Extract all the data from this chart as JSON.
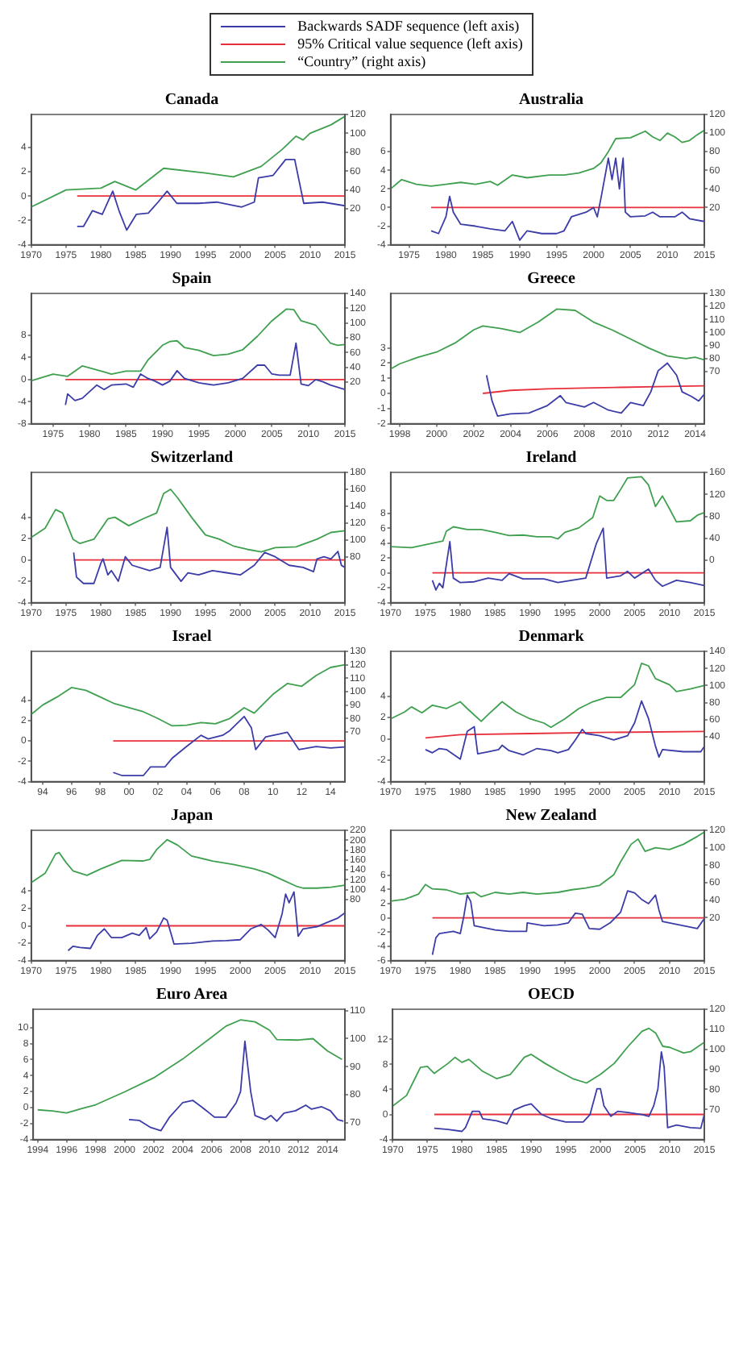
{
  "chart_data": [
    {
      "type": "line",
      "title": "Canada",
      "legend": "top",
      "xlim": [
        1970,
        2015
      ],
      "xticks": [
        1970,
        1975,
        1980,
        1985,
        1990,
        1995,
        2000,
        2005,
        2010,
        2015
      ],
      "ylim": [
        -4,
        6.7
      ],
      "yticks": [
        -4,
        -2,
        0,
        2,
        4
      ],
      "y2lim": [
        -18,
        120
      ],
      "y2ticks": [
        20,
        40,
        60,
        80,
        100,
        120
      ],
      "series": [
        {
          "name": "Backwards SADF sequence (left axis)",
          "color": "#3c3ca8",
          "x": [
            1976.6,
            1977.5,
            1978.8,
            1980.2,
            1981.7,
            1982.6,
            1983.7,
            1985.1,
            1986.8,
            1988.2,
            1989.5,
            1990.9,
            1994,
            1996.6,
            2000.2,
            2002,
            2002.6,
            2004.7,
            2006.5,
            2007.8,
            2009.1,
            2011.8,
            2015
          ],
          "values": [
            -2.5,
            -2.5,
            -1.2,
            -1.5,
            0.4,
            -1.2,
            -2.8,
            -1.5,
            -1.4,
            -0.5,
            0.4,
            -0.6,
            -0.6,
            -0.5,
            -0.9,
            -0.5,
            1.5,
            1.7,
            3,
            3,
            -0.6,
            -0.5,
            -0.8
          ]
        },
        {
          "name": "95% Critical value sequence (left axis)",
          "color": "#e8303c",
          "x": [
            1976.6,
            2015
          ],
          "values": [
            0,
            0
          ]
        },
        {
          "name": "“Country” (right axis)",
          "color": "#3fa04f",
          "axis": "y2",
          "x": [
            1970,
            1975,
            1980,
            1982,
            1985,
            1989,
            1995,
            1999,
            2003,
            2006,
            2008,
            2009,
            2010,
            2013,
            2015
          ],
          "values": [
            22,
            40,
            42,
            49,
            40,
            63,
            58,
            54,
            65,
            83,
            97,
            93,
            100,
            109,
            118
          ]
        }
      ]
    },
    {
      "type": "line",
      "title": "Australia",
      "xlim": [
        1972.5,
        2015
      ],
      "xticks": [
        1975,
        1980,
        1985,
        1990,
        1995,
        2000,
        2005,
        2010,
        2015
      ],
      "ylim": [
        -4,
        10
      ],
      "yticks": [
        -4,
        -2,
        0,
        2,
        4,
        6
      ],
      "y2lim": [
        -20,
        120
      ],
      "y2ticks": [
        20,
        40,
        60,
        80,
        100,
        120
      ],
      "series": [
        {
          "color": "#3c3ca8",
          "x": [
            1978,
            1979,
            1980,
            1980.5,
            1981,
            1982,
            1984,
            1986,
            1988,
            1989,
            1990,
            1991,
            1993,
            1995,
            1996,
            1997,
            1999,
            2000,
            2000.5,
            2001,
            2002,
            2002.5,
            2003,
            2003.5,
            2004,
            2004.3,
            2005,
            2007,
            2008,
            2009,
            2011,
            2012,
            2013,
            2015
          ],
          "values": [
            -2.5,
            -2.8,
            -1,
            1.2,
            -0.5,
            -1.8,
            -2,
            -2.3,
            -2.5,
            -1.5,
            -3.5,
            -2.5,
            -2.8,
            -2.8,
            -2.5,
            -1,
            -0.5,
            0,
            -1,
            1,
            5.3,
            3,
            5.3,
            2,
            5.3,
            -0.5,
            -1,
            -0.9,
            -0.5,
            -1,
            -1,
            -0.5,
            -1.2,
            -1.5
          ]
        },
        {
          "color": "#e8303c",
          "x": [
            1978,
            2015
          ],
          "values": [
            0,
            0
          ]
        },
        {
          "color": "#3fa04f",
          "axis": "y2",
          "x": [
            1972.5,
            1974,
            1976,
            1978,
            1980,
            1982,
            1984,
            1986,
            1987,
            1989,
            1991,
            1994,
            1996,
            1998,
            2000,
            2001,
            2002,
            2003,
            2005,
            2007,
            2008,
            2009,
            2010,
            2011,
            2012,
            2013,
            2014,
            2015
          ],
          "values": [
            40,
            50,
            45,
            43,
            45,
            47,
            45,
            48,
            44,
            55,
            52,
            55,
            55,
            57,
            62,
            68,
            80,
            94,
            95,
            102,
            96,
            92,
            100,
            96,
            90,
            92,
            98,
            103
          ]
        }
      ]
    },
    {
      "type": "line",
      "title": "Spain",
      "xlim": [
        1972,
        2015
      ],
      "xticks": [
        1975,
        1980,
        1985,
        1990,
        1995,
        2000,
        2005,
        2010,
        2015
      ],
      "ylim": [
        -8,
        15.6
      ],
      "yticks": [
        -8,
        -4,
        0,
        4,
        8
      ],
      "y2lim": [
        -36,
        140
      ],
      "y2ticks": [
        20,
        40,
        60,
        80,
        100,
        120,
        140
      ],
      "series": [
        {
          "color": "#3c3ca8",
          "x": [
            1976.7,
            1977,
            1978,
            1979,
            1980,
            1981,
            1982,
            1983,
            1985,
            1986,
            1987,
            1988,
            1989,
            1990,
            1991,
            1992,
            1993,
            1995,
            1997,
            1999,
            2001,
            2003,
            2004,
            2005,
            2006,
            2007.5,
            2008.3,
            2009,
            2010,
            2011,
            2012,
            2013,
            2015
          ],
          "values": [
            -4.6,
            -2.6,
            -3.8,
            -3.4,
            -2.2,
            -1,
            -1.8,
            -1,
            -0.8,
            -1.4,
            1,
            0.2,
            -0.3,
            -1,
            -0.3,
            1.6,
            0.2,
            -0.6,
            -1,
            -0.6,
            0.2,
            2.6,
            2.6,
            1,
            0.8,
            0.8,
            6.6,
            -0.8,
            -1.1,
            0,
            -0.4,
            -1,
            -1.8
          ]
        },
        {
          "color": "#e8303c",
          "x": [
            1976.7,
            2015
          ],
          "values": [
            0,
            0
          ]
        },
        {
          "color": "#3fa04f",
          "axis": "y2",
          "x": [
            1972,
            1975,
            1977,
            1979,
            1982,
            1983,
            1985,
            1987,
            1988,
            1990,
            1991,
            1992,
            1993,
            1995,
            1997,
            1999,
            2001,
            2003,
            2005,
            2007,
            2008,
            2009,
            2010,
            2011,
            2013,
            2014,
            2015
          ],
          "values": [
            22,
            31,
            28,
            42,
            34,
            31,
            35,
            35,
            50,
            70,
            75,
            76,
            67,
            63,
            56,
            58,
            64,
            82,
            103,
            119,
            118,
            103,
            100,
            97,
            73,
            70,
            71
          ]
        }
      ]
    },
    {
      "type": "line",
      "title": "Greece",
      "xlim": [
        1997.5,
        2014.5
      ],
      "xticks": [
        1998,
        2000,
        2002,
        2004,
        2006,
        2008,
        2010,
        2012,
        2014
      ],
      "ylim": [
        -2,
        6.6
      ],
      "yticks": [
        -2,
        -1,
        0,
        1,
        2,
        3
      ],
      "y2lim": [
        30,
        130
      ],
      "y2ticks": [
        70,
        80,
        90,
        100,
        110,
        120,
        130
      ],
      "series": [
        {
          "color": "#3c3ca8",
          "x": [
            2002.7,
            2003,
            2003.3,
            2004,
            2005,
            2006,
            2006.7,
            2007,
            2008,
            2008.5,
            2009.3,
            2010,
            2010.5,
            2011.2,
            2011.6,
            2012,
            2012.5,
            2013,
            2013.3,
            2013.8,
            2014.2,
            2014.5
          ],
          "values": [
            1.2,
            -0.5,
            -1.5,
            -1.35,
            -1.3,
            -0.8,
            -0.15,
            -0.6,
            -0.9,
            -0.6,
            -1.1,
            -1.3,
            -0.6,
            -0.8,
            0.1,
            1.5,
            2,
            1.2,
            0.1,
            -0.2,
            -0.5,
            -0.05
          ]
        },
        {
          "color": "#e8303c",
          "x": [
            2002.5,
            2004,
            2006,
            2008,
            2010,
            2012,
            2014.5
          ],
          "values": [
            0,
            0.2,
            0.3,
            0.35,
            0.4,
            0.45,
            0.5
          ]
        },
        {
          "color": "#3fa04f",
          "axis": "y2",
          "x": [
            1997.5,
            1998,
            1999,
            2000,
            2001,
            2002,
            2002.5,
            2003.5,
            2004.5,
            2005.5,
            2006.5,
            2007.5,
            2008.5,
            2009.5,
            2010.5,
            2011.5,
            2012.5,
            2013.5,
            2014,
            2014.5
          ],
          "values": [
            72,
            76,
            81,
            85,
            92,
            102,
            105,
            103,
            100,
            108,
            118,
            117,
            108,
            102,
            95,
            88,
            82,
            80,
            81,
            79
          ]
        }
      ]
    },
    {
      "type": "line",
      "title": "Switzerland",
      "xlim": [
        1970,
        2015
      ],
      "xticks": [
        1970,
        1975,
        1980,
        1985,
        1990,
        1995,
        2000,
        2005,
        2010,
        2015
      ],
      "ylim": [
        -4,
        8.2
      ],
      "yticks": [
        -4,
        -2,
        0,
        2,
        4
      ],
      "y2lim": [
        26,
        180
      ],
      "y2ticks": [
        80,
        100,
        120,
        140,
        160,
        180
      ],
      "series": [
        {
          "color": "#3c3ca8",
          "x": [
            1976.1,
            1976.5,
            1977.5,
            1979,
            1980,
            1980.3,
            1981,
            1981.5,
            1982.5,
            1983.5,
            1984.5,
            1987,
            1988.5,
            1989.5,
            1990,
            1991.5,
            1992.5,
            1994,
            1996,
            1998,
            2000,
            2002,
            2003.5,
            2005,
            2007,
            2009,
            2010.5,
            2011,
            2012,
            2013,
            2014,
            2014.5,
            2015
          ],
          "values": [
            0.7,
            -1.6,
            -2.2,
            -2.2,
            -0.3,
            0.1,
            -1.4,
            -1,
            -2,
            0.3,
            -0.5,
            -1,
            -0.7,
            3.05,
            -0.7,
            -2,
            -1.2,
            -1.4,
            -1,
            -1.2,
            -1.4,
            -0.5,
            0.7,
            0.3,
            -0.5,
            -0.7,
            -1.1,
            0.1,
            0.3,
            0.1,
            0.8,
            -0.5,
            -0.7
          ]
        },
        {
          "color": "#e8303c",
          "x": [
            1976.1,
            2015
          ],
          "values": [
            0,
            0
          ]
        },
        {
          "color": "#3fa04f",
          "axis": "y2",
          "x": [
            1970,
            1972,
            1973.5,
            1974.5,
            1976,
            1977,
            1979,
            1981,
            1982,
            1984,
            1986,
            1988,
            1989,
            1990,
            1991,
            1993,
            1995,
            1997,
            1999,
            2001,
            2003,
            2005,
            2008,
            2011,
            2013,
            2015
          ],
          "values": [
            103,
            114,
            136,
            132,
            101,
            96,
            101,
            125,
            127,
            117,
            125,
            132,
            155,
            160,
            150,
            127,
            106,
            101,
            93,
            89,
            86,
            91,
            92,
            101,
            109,
            111
          ]
        }
      ]
    },
    {
      "type": "line",
      "title": "Ireland",
      "xlim": [
        1970,
        2015
      ],
      "xticks": [
        1970,
        1975,
        1980,
        1985,
        1990,
        1995,
        2000,
        2005,
        2010,
        2015
      ],
      "ylim": [
        -4,
        13.5
      ],
      "yticks": [
        -4,
        -2,
        0,
        2,
        4,
        6,
        8
      ],
      "y2lim": [
        -77,
        160
      ],
      "y2ticks": [
        0,
        40,
        80,
        120,
        160
      ],
      "series": [
        {
          "color": "#3c3ca8",
          "x": [
            1976,
            1976.5,
            1977,
            1977.5,
            1978.5,
            1979,
            1980,
            1982,
            1984,
            1986,
            1987,
            1989,
            1992,
            1994,
            1996,
            1998,
            1999.5,
            2000.5,
            2001,
            2003,
            2004,
            2005,
            2007,
            2008,
            2009,
            2011,
            2013,
            2015
          ],
          "values": [
            -1,
            -2.3,
            -1.4,
            -2,
            4.2,
            -0.7,
            -1.3,
            -1.2,
            -0.7,
            -1,
            -0.1,
            -0.8,
            -0.8,
            -1.3,
            -1,
            -0.7,
            3.9,
            6,
            -0.7,
            -0.4,
            0.2,
            -0.7,
            0.5,
            -1,
            -1.8,
            -1,
            -1.3,
            -1.7
          ]
        },
        {
          "color": "#e8303c",
          "x": [
            1976,
            2015
          ],
          "values": [
            0,
            0
          ]
        },
        {
          "color": "#3fa04f",
          "axis": "y2",
          "x": [
            1970,
            1973,
            1976,
            1977.5,
            1978,
            1979,
            1981,
            1983,
            1985,
            1987,
            1989,
            1991,
            1993,
            1994,
            1995,
            1997,
            1999,
            2000,
            2001,
            2002,
            2003,
            2004,
            2006,
            2007,
            2008,
            2009,
            2010,
            2011,
            2013,
            2014,
            2015
          ],
          "values": [
            25,
            23,
            31,
            35,
            53,
            61,
            56,
            56,
            51,
            45,
            46,
            43,
            43,
            39,
            51,
            59,
            78,
            117,
            109,
            109,
            129,
            150,
            152,
            137,
            98,
            117,
            94,
            70,
            72,
            82,
            87
          ]
        }
      ]
    },
    {
      "type": "line",
      "title": "Israel",
      "xlim": [
        1993.2,
        2015
      ],
      "xticks": [
        {
          "value": 1994,
          "label": "94"
        },
        {
          "value": 1996,
          "label": "96"
        },
        {
          "value": 1998,
          "label": "98"
        },
        {
          "value": 2000,
          "label": "00"
        },
        {
          "value": 2002,
          "label": "02"
        },
        {
          "value": 2004,
          "label": "04"
        },
        {
          "value": 2006,
          "label": "06"
        },
        {
          "value": 2008,
          "label": "08"
        },
        {
          "value": 2010,
          "label": "10"
        },
        {
          "value": 2012,
          "label": "12"
        },
        {
          "value": 2014,
          "label": "14"
        }
      ],
      "ylim": [
        -4,
        8.8
      ],
      "yticks": [
        -4,
        -2,
        0,
        2,
        4
      ],
      "y2lim": [
        33,
        130
      ],
      "y2ticks": [
        70,
        80,
        90,
        100,
        110,
        120,
        130
      ],
      "series": [
        {
          "color": "#3c3ca8",
          "x": [
            1998.9,
            1999.5,
            2001,
            2001.5,
            2002.5,
            2003,
            2004,
            2005,
            2005.5,
            2006.5,
            2007,
            2008,
            2008.5,
            2008.8,
            2009.5,
            2010.5,
            2011,
            2011.8,
            2013,
            2014,
            2015
          ],
          "values": [
            -3.1,
            -3.4,
            -3.4,
            -2.55,
            -2.55,
            -1.7,
            -0.55,
            0.55,
            0.2,
            0.55,
            1,
            2.4,
            1.3,
            -0.85,
            0.4,
            0.7,
            0.85,
            -0.85,
            -0.55,
            -0.7,
            -0.6
          ]
        },
        {
          "color": "#e8303c",
          "x": [
            1998.9,
            2015
          ],
          "values": [
            0,
            0
          ]
        },
        {
          "color": "#3fa04f",
          "axis": "y2",
          "x": [
            1993.2,
            1994,
            1995,
            1996,
            1997,
            1998,
            1999,
            2000,
            2001,
            2002,
            2003,
            2004,
            2005,
            2006,
            2007,
            2008,
            2008.7,
            2010,
            2011,
            2012,
            2013,
            2014,
            2015
          ],
          "values": [
            83,
            90,
            96,
            103,
            101,
            96,
            91,
            88,
            85,
            80,
            74.5,
            75,
            77,
            76,
            80,
            88,
            84,
            98,
            106,
            104,
            112,
            118,
            120
          ]
        }
      ]
    },
    {
      "type": "line",
      "title": "Denmark",
      "xlim": [
        1970,
        2015
      ],
      "xticks": [
        1970,
        1975,
        1980,
        1985,
        1990,
        1995,
        2000,
        2005,
        2010,
        2015
      ],
      "ylim": [
        -4,
        8.2
      ],
      "yticks": [
        -4,
        -2,
        0,
        2,
        4
      ],
      "y2lim": [
        -12.5,
        140
      ],
      "y2ticks": [
        40,
        60,
        80,
        100,
        120,
        140
      ],
      "series": [
        {
          "color": "#3c3ca8",
          "x": [
            1975,
            1976,
            1977,
            1978,
            1980,
            1981,
            1982,
            1982.5,
            1984,
            1985.5,
            1986,
            1987,
            1989,
            1991,
            1993,
            1994,
            1995.5,
            1996.5,
            1997.5,
            1998,
            2000,
            2002,
            2004,
            2005,
            2006,
            2007,
            2008,
            2008.5,
            2009,
            2012,
            2014.5,
            2015
          ],
          "values": [
            -1,
            -1.3,
            -0.9,
            -1,
            -1.9,
            0.7,
            1.15,
            -1.4,
            -1.2,
            -1,
            -0.6,
            -1.1,
            -1.5,
            -0.9,
            -1.1,
            -1.3,
            -1,
            -0.1,
            0.9,
            0.5,
            0.3,
            -0.1,
            0.3,
            1.5,
            3.55,
            1.9,
            -0.7,
            -1.7,
            -1,
            -1.2,
            -1.2,
            -0.7
          ]
        },
        {
          "color": "#e8303c",
          "x": [
            1975,
            1980,
            1990,
            2000,
            2015
          ],
          "values": [
            0.1,
            0.4,
            0.5,
            0.6,
            0.7
          ]
        },
        {
          "color": "#3fa04f",
          "axis": "y2",
          "x": [
            1970,
            1972,
            1973,
            1974.5,
            1976,
            1978,
            1980,
            1981,
            1983,
            1984,
            1986,
            1988,
            1990,
            1992,
            1993,
            1995,
            1997,
            1999,
            2001,
            2003,
            2005,
            2006,
            2007,
            2008,
            2010,
            2011,
            2013,
            2015
          ],
          "values": [
            61,
            69,
            75,
            68,
            77,
            73,
            81,
            73,
            58,
            66,
            81,
            69,
            61,
            56,
            51,
            61,
            73,
            81,
            86,
            86,
            101,
            126,
            123,
            108,
            101,
            93,
            96,
            100
          ]
        }
      ]
    },
    {
      "type": "line",
      "title": "Japan",
      "xlim": [
        1970,
        2015
      ],
      "xticks": [
        1970,
        1975,
        1980,
        1985,
        1990,
        1995,
        2000,
        2005,
        2010,
        2015
      ],
      "ylim": [
        -4,
        11
      ],
      "yticks": [
        -4,
        -2,
        0,
        2,
        4
      ],
      "y2lim": [
        -43.5,
        220
      ],
      "y2ticks": [
        80,
        100,
        120,
        140,
        160,
        180,
        200,
        220
      ],
      "series": [
        {
          "color": "#3c3ca8",
          "x": [
            1975.3,
            1976,
            1977,
            1978.5,
            1979.5,
            1980.5,
            1981.5,
            1983,
            1984.5,
            1985.5,
            1986.5,
            1987,
            1988,
            1989,
            1989.5,
            1990.5,
            1993,
            1996,
            1998,
            2000,
            2001.5,
            2003,
            2004,
            2005,
            2006,
            2006.5,
            2007,
            2007.7,
            2008.3,
            2009,
            2011,
            2012.5,
            2014,
            2015
          ],
          "values": [
            -2.85,
            -2.35,
            -2.5,
            -2.6,
            -1.1,
            -0.35,
            -1.35,
            -1.35,
            -0.85,
            -1.1,
            -0.2,
            -1.5,
            -0.7,
            0.9,
            0.65,
            -2.1,
            -2,
            -1.75,
            -1.7,
            -1.6,
            -0.35,
            0.15,
            -0.5,
            -1.35,
            1.4,
            3.65,
            2.65,
            3.9,
            -1.2,
            -0.35,
            -0.1,
            0.4,
            0.9,
            1.5
          ]
        },
        {
          "color": "#e8303c",
          "x": [
            1975,
            2015
          ],
          "values": [
            0,
            0
          ]
        },
        {
          "color": "#3fa04f",
          "axis": "y2",
          "x": [
            1970,
            1972,
            1973.5,
            1974,
            1975,
            1976,
            1978,
            1980,
            1983,
            1986,
            1987,
            1988,
            1989.5,
            1991,
            1993,
            1996,
            1999,
            2002,
            2004,
            2006,
            2008,
            2009,
            2011,
            2013,
            2015
          ],
          "values": [
            114,
            133,
            172,
            175,
            155,
            138,
            129,
            142,
            159,
            158,
            161,
            181,
            201,
            190,
            168,
            158,
            151,
            142,
            133,
            120,
            107,
            103,
            103,
            105,
            109
          ]
        }
      ]
    },
    {
      "type": "line",
      "title": "New Zealand",
      "xlim": [
        1970,
        2015
      ],
      "xticks": [
        1970,
        1975,
        1980,
        1985,
        1990,
        1995,
        2000,
        2005,
        2010,
        2015
      ],
      "ylim": [
        -6,
        12.3
      ],
      "yticks": [
        -6,
        -4,
        -2,
        0,
        2,
        4,
        6
      ],
      "y2lim": [
        -29,
        120
      ],
      "y2ticks": [
        20,
        40,
        60,
        80,
        100,
        120
      ],
      "series": [
        {
          "color": "#3c3ca8",
          "x": [
            1976,
            1976.5,
            1977,
            1979,
            1980,
            1980.5,
            1981,
            1981.5,
            1982,
            1983,
            1985,
            1987,
            1989.5,
            1989.6,
            1992,
            1994,
            1995.5,
            1996.5,
            1997.5,
            1998.5,
            2000,
            2001.5,
            2003,
            2004,
            2005,
            2006,
            2007,
            2008,
            2008.5,
            2009,
            2010,
            2012,
            2014,
            2015
          ],
          "values": [
            -5.2,
            -2.8,
            -2.2,
            -1.9,
            -2.2,
            0.2,
            3.2,
            2.3,
            -1.1,
            -1.3,
            -1.7,
            -1.9,
            -1.9,
            -0.7,
            -1.1,
            -1,
            -0.7,
            0.65,
            0.5,
            -1.5,
            -1.6,
            -0.7,
            0.8,
            3.8,
            3.5,
            2.6,
            2,
            3.2,
            1.1,
            -0.5,
            -0.7,
            -1.1,
            -1.5,
            -0.1
          ]
        },
        {
          "color": "#e8303c",
          "x": [
            1976,
            2015
          ],
          "values": [
            0,
            0
          ]
        },
        {
          "color": "#3fa04f",
          "axis": "y2",
          "x": [
            1970,
            1972,
            1974,
            1975,
            1976,
            1978,
            1980,
            1982,
            1983,
            1985,
            1987,
            1989,
            1991,
            1994,
            1996,
            1998,
            2000,
            2002,
            2003,
            2004.5,
            2005.5,
            2006.5,
            2008,
            2010,
            2012,
            2014,
            2015
          ],
          "values": [
            39,
            41,
            47,
            58,
            53,
            52,
            47,
            49,
            44,
            49,
            47,
            49,
            47,
            49,
            52,
            54,
            57,
            69,
            84,
            104,
            110,
            96,
            100,
            98,
            104,
            113,
            118
          ]
        }
      ]
    },
    {
      "type": "line",
      "title": "Euro Area",
      "xlim": [
        1993.7,
        2015.2
      ],
      "xticks": [
        1994,
        1996,
        1998,
        2000,
        2002,
        2004,
        2006,
        2008,
        2010,
        2012,
        2014
      ],
      "ylim": [
        -4,
        12.3
      ],
      "yticks": [
        -4,
        -2,
        0,
        2,
        4,
        6,
        8,
        10
      ],
      "y2lim": [
        64,
        110.5
      ],
      "y2ticks": [
        70,
        80,
        90,
        100,
        110
      ],
      "series": [
        {
          "color": "#3c3ca8",
          "x": [
            2000.3,
            2001,
            2001.8,
            2002.5,
            2003.1,
            2004,
            2004.7,
            2005.3,
            2006.2,
            2007,
            2007.7,
            2008,
            2008.3,
            2008.7,
            2009,
            2009.7,
            2010.1,
            2010.5,
            2011,
            2011.8,
            2012.5,
            2012.9,
            2013.6,
            2014.2,
            2014.7,
            2015.1
          ],
          "values": [
            -1.5,
            -1.6,
            -2.5,
            -2.9,
            -1.2,
            0.6,
            0.9,
            0.1,
            -1.2,
            -1.2,
            0.6,
            2,
            8.3,
            2,
            -1,
            -1.5,
            -1,
            -1.7,
            -0.7,
            -0.4,
            0.3,
            -0.2,
            0.1,
            -0.4,
            -1.5,
            -1.7
          ]
        },
        {
          "color": "#3fa04f",
          "axis": "y2",
          "x": [
            1994,
            1995,
            1996,
            1997,
            1998,
            2000,
            2002,
            2004,
            2006,
            2007,
            2008,
            2009,
            2010,
            2010.5,
            2012,
            2013,
            2014,
            2015
          ],
          "values": [
            74.6,
            74.2,
            73.5,
            75,
            76.4,
            81,
            86,
            92.7,
            100.5,
            104.5,
            106.7,
            106,
            103,
            99.7,
            99.5,
            100,
            95.6,
            92.6
          ]
        }
      ]
    },
    {
      "type": "line",
      "title": "OECD",
      "xlim": [
        1970,
        2015
      ],
      "xticks": [
        1970,
        1975,
        1980,
        1985,
        1990,
        1995,
        2000,
        2005,
        2010,
        2015
      ],
      "ylim": [
        -4,
        16.8
      ],
      "yticks": [
        -4,
        0,
        4,
        8,
        12
      ],
      "y2lim": [
        55,
        120
      ],
      "y2ticks": [
        70,
        80,
        90,
        100,
        110,
        120
      ],
      "series": [
        {
          "color": "#3c3ca8",
          "x": [
            1976,
            1978,
            1980,
            1980.5,
            1981.5,
            1982.5,
            1983,
            1985,
            1986.5,
            1987.5,
            1989,
            1990,
            1991.5,
            1993,
            1995,
            1997.5,
            1998.5,
            1999.5,
            2000,
            2000.5,
            2001.5,
            2002.5,
            2004,
            2006,
            2007,
            2007.7,
            2008.3,
            2008.8,
            2009.2,
            2009.7,
            2011,
            2013,
            2014.5,
            2015
          ],
          "values": [
            -2.2,
            -2.4,
            -2.7,
            -2.1,
            0.5,
            0.5,
            -0.7,
            -1,
            -1.5,
            0.7,
            1.4,
            1.7,
            0,
            -0.7,
            -1.2,
            -1.2,
            0,
            4.1,
            4.1,
            1.4,
            -0.3,
            0.5,
            0.3,
            0,
            -0.3,
            1.4,
            4.1,
            10,
            7.6,
            -2.1,
            -1.7,
            -2.1,
            -2.2,
            0
          ]
        },
        {
          "color": "#e8303c",
          "x": [
            1976,
            2015
          ],
          "values": [
            0,
            0
          ]
        },
        {
          "color": "#3fa04f",
          "axis": "y2",
          "x": [
            1970,
            1972,
            1974,
            1975,
            1976,
            1978,
            1979,
            1980,
            1981,
            1982,
            1983,
            1985,
            1987,
            1989,
            1990,
            1992,
            1994,
            1996,
            1998,
            2000,
            2002,
            2004,
            2006,
            2007,
            2008,
            2009,
            2010,
            2012,
            2013,
            2015
          ],
          "values": [
            71.7,
            77,
            91,
            91.5,
            88,
            93,
            96,
            93.5,
            95,
            92,
            89,
            85.4,
            87.5,
            96,
            97.5,
            93,
            89,
            85.4,
            83.2,
            87.5,
            93,
            101.5,
            109,
            110.5,
            108,
            101.5,
            101,
            98.2,
            98.8,
            103.5
          ]
        }
      ]
    }
  ]
}
